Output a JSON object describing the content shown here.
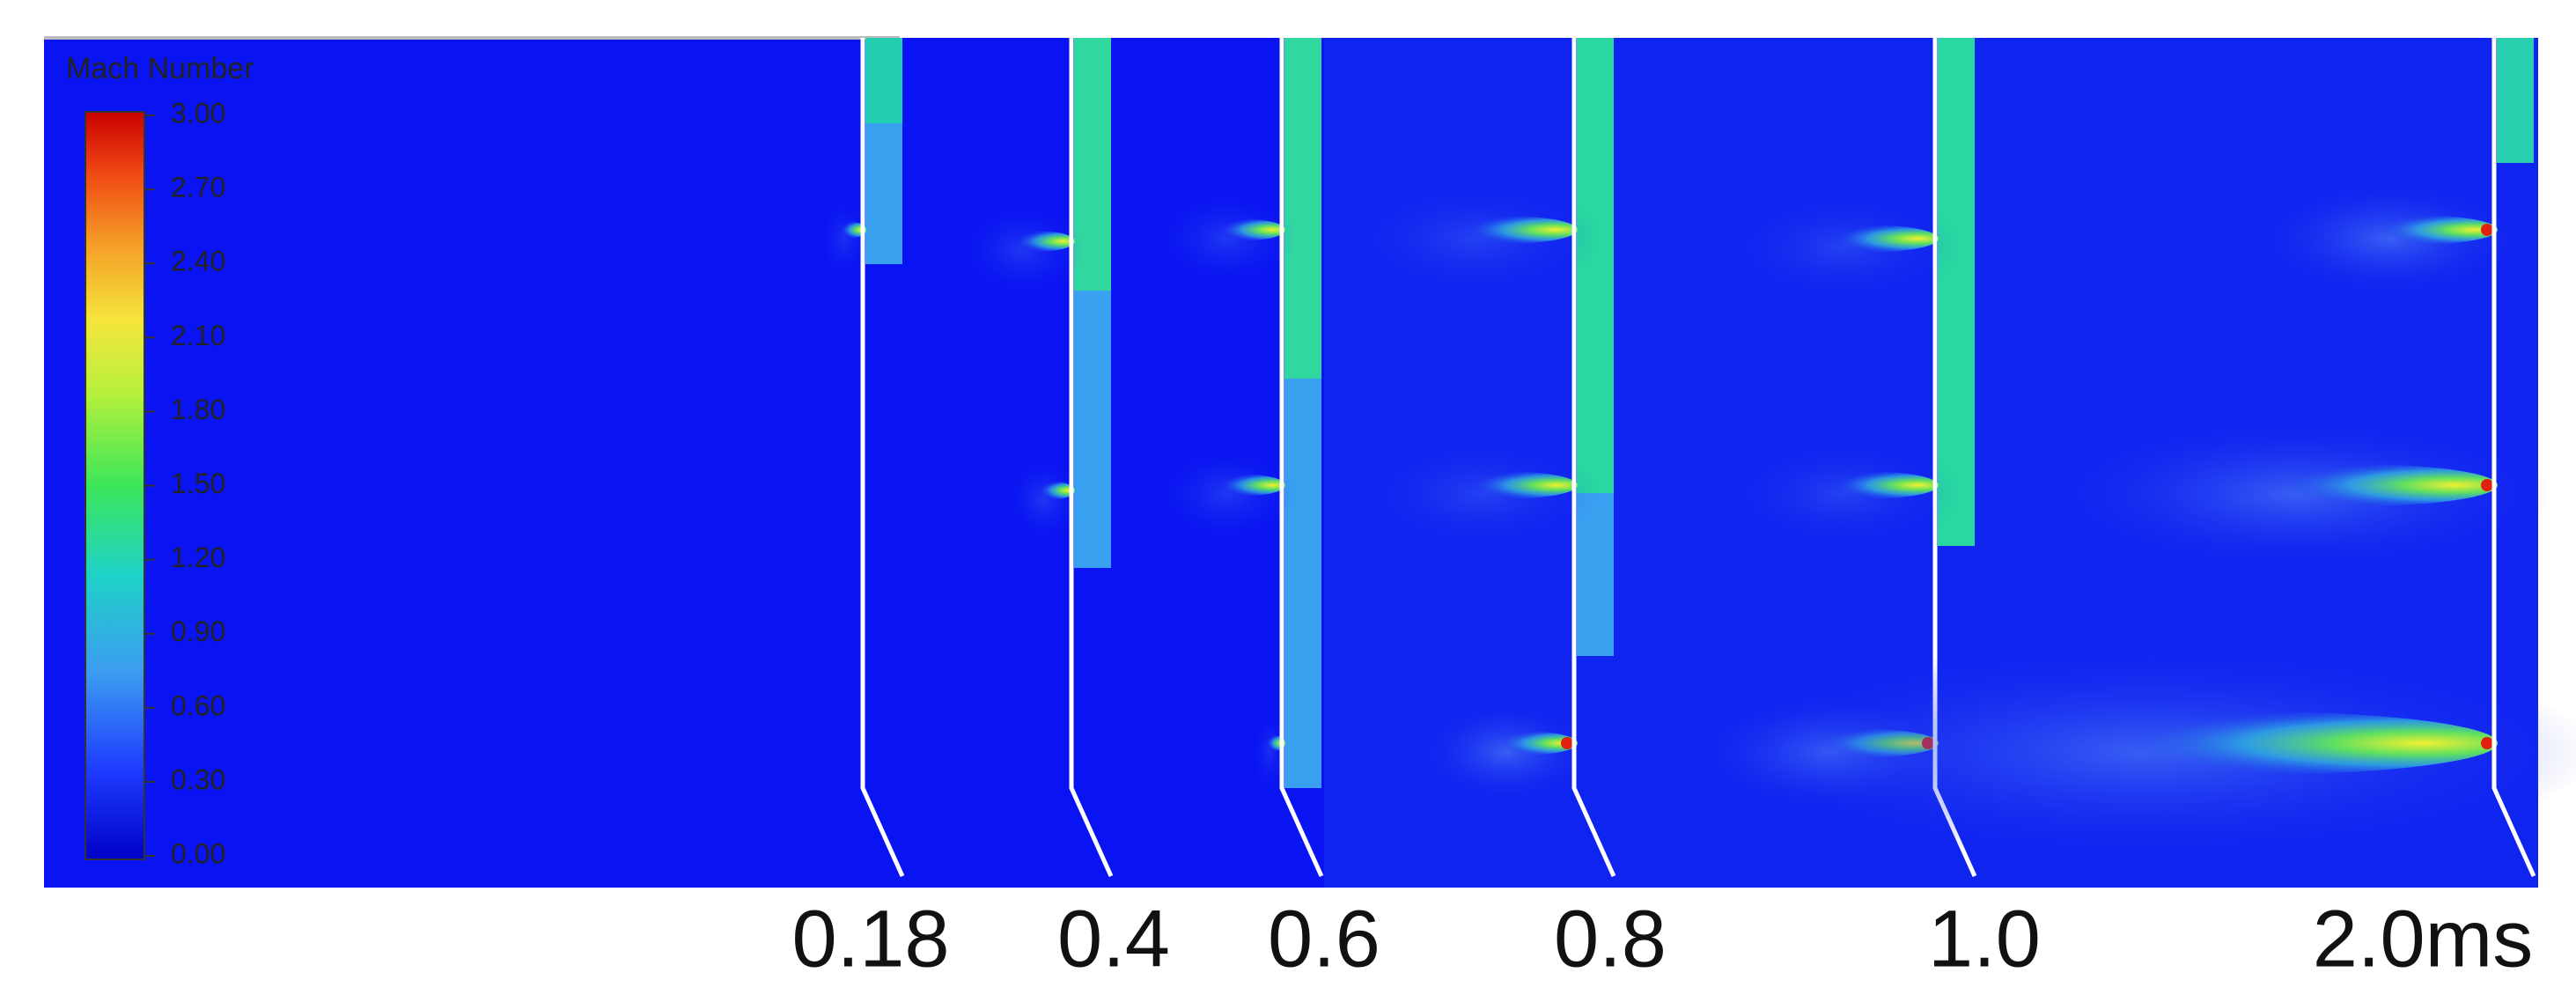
{
  "colorbar": {
    "title": "Mach Number",
    "ticks": [
      "3.00",
      "2.70",
      "2.40",
      "2.10",
      "1.80",
      "1.50",
      "1.20",
      "0.90",
      "0.60",
      "0.30",
      "0.00"
    ]
  },
  "time_labels": [
    "0.18",
    "0.4",
    "0.6",
    "0.8",
    "1.0",
    "2.0ms"
  ]
}
